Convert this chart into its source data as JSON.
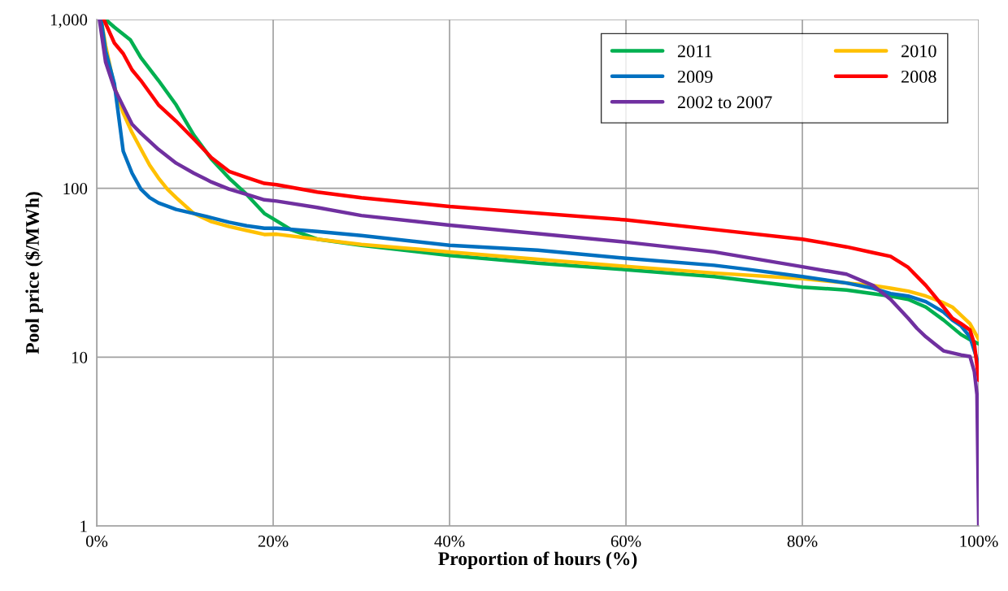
{
  "chart_data": {
    "type": "line",
    "xlabel": "Proportion of hours (%)",
    "ylabel": "Pool price ($/MWh)",
    "log": "y",
    "grid": true,
    "legend": "top right",
    "marker": "none",
    "line_style": "solid",
    "xlim": [
      0,
      100
    ],
    "ylim": [
      1,
      1000
    ],
    "xticks": [
      {
        "value": 0,
        "label": "0%"
      },
      {
        "value": 20,
        "label": "20%"
      },
      {
        "value": 40,
        "label": "40%"
      },
      {
        "value": 60,
        "label": "60%"
      },
      {
        "value": 80,
        "label": "80%"
      },
      {
        "value": 100,
        "label": "100%"
      }
    ],
    "yticks": [
      1,
      10,
      100,
      {
        "value": 1000,
        "label": "1,000"
      }
    ],
    "series": [
      {
        "name": "2011",
        "color": "#00b050",
        "x": [
          1,
          2,
          3.8,
          5,
          7,
          9,
          11,
          13,
          15,
          17,
          19,
          20,
          22,
          25,
          30,
          40,
          50,
          60,
          70,
          80,
          85,
          90,
          92,
          94,
          96,
          98,
          99,
          100
        ],
        "values": [
          1000,
          900,
          758,
          594,
          435,
          312,
          207,
          149,
          115,
          92,
          71,
          66,
          57,
          50,
          46,
          40,
          36,
          33,
          30,
          26,
          25,
          23,
          22,
          19.8,
          16.6,
          13.6,
          12.7,
          12
        ]
      },
      {
        "name": "2010",
        "color": "#ffc000",
        "x": [
          0.5,
          1,
          2,
          3,
          4,
          5,
          6,
          7,
          8,
          9,
          10,
          11,
          13,
          15,
          17,
          19,
          20.4,
          25,
          30,
          40,
          50,
          60,
          70,
          80,
          85,
          88,
          90,
          92,
          94,
          95,
          96,
          97,
          98,
          99,
          100
        ],
        "values": [
          1000,
          700,
          400,
          279,
          214,
          171,
          137,
          115,
          99,
          88,
          79,
          71,
          63.5,
          59.4,
          56.3,
          53.3,
          53.5,
          50,
          46.5,
          42,
          38,
          34.5,
          31.5,
          29.2,
          27.5,
          26.6,
          25.6,
          24.6,
          23,
          22,
          21,
          19.8,
          17.7,
          15.8,
          12.7
        ]
      },
      {
        "name": "2009",
        "color": "#0070c0",
        "x": [
          0.5,
          1,
          2,
          3,
          4,
          5,
          6,
          7,
          9,
          11,
          13,
          15,
          17,
          19,
          20.4,
          25,
          30,
          40,
          50,
          60,
          70,
          74,
          80,
          85,
          88,
          90,
          92,
          94,
          96,
          97,
          98,
          99,
          100
        ],
        "values": [
          1000,
          650,
          416,
          166,
          123,
          99,
          88,
          82,
          75,
          71,
          67,
          63,
          60,
          58,
          58,
          55.5,
          52.5,
          46,
          43,
          38.5,
          35,
          33,
          30,
          27.5,
          25.6,
          23.8,
          23,
          21.3,
          18.5,
          16.6,
          15.3,
          13.2,
          9
        ]
      },
      {
        "name": "2008",
        "color": "#ff0000",
        "x": [
          0.8,
          2,
          3,
          4,
          5,
          7,
          9,
          11,
          13,
          15,
          17,
          19,
          20.4,
          25,
          30,
          40,
          60,
          70,
          80,
          85,
          88,
          90,
          92,
          94,
          95,
          96,
          97,
          98,
          99,
          99.5,
          100
        ],
        "values": [
          1000,
          725,
          628,
          503,
          435,
          312,
          250,
          196,
          152,
          126,
          116,
          107,
          105,
          95,
          88,
          78,
          65,
          57,
          50,
          45,
          41.6,
          39.5,
          34,
          26.6,
          23,
          19.8,
          17,
          15.8,
          14.5,
          12,
          7.3
        ]
      },
      {
        "name": "2002 to 2007",
        "color": "#7030a0",
        "x": [
          0.3,
          1,
          2,
          3,
          4,
          5,
          7,
          9,
          11,
          13,
          15,
          17,
          19,
          20.4,
          25,
          30,
          40,
          60,
          70,
          80,
          85,
          88,
          90,
          92,
          93,
          94,
          95,
          96,
          98,
          99,
          99.5,
          99.8,
          100
        ],
        "values": [
          1000,
          560,
          390,
          305,
          240,
          212,
          170,
          141,
          123,
          109,
          99,
          92,
          85.5,
          84,
          77,
          69,
          60.5,
          48,
          42,
          34.3,
          31,
          26.6,
          22,
          17,
          14.8,
          13.2,
          12,
          10.9,
          10.3,
          10.1,
          8.2,
          6,
          1
        ]
      }
    ]
  }
}
